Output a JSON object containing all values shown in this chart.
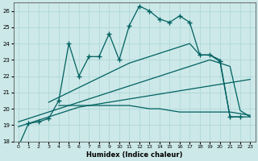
{
  "xlabel": "Humidex (Indice chaleur)",
  "xlim": [
    -0.5,
    23.5
  ],
  "ylim": [
    18,
    26.5
  ],
  "yticks": [
    18,
    19,
    20,
    21,
    22,
    23,
    24,
    25,
    26
  ],
  "xticks": [
    0,
    1,
    2,
    3,
    4,
    5,
    6,
    7,
    8,
    9,
    10,
    11,
    12,
    13,
    14,
    15,
    16,
    17,
    18,
    19,
    20,
    21,
    22,
    23
  ],
  "bg_color": "#cce8e8",
  "line_color": "#006060",
  "grid_color": "#b0d8d8",
  "curve1_x": [
    0,
    1,
    2,
    3,
    4,
    5,
    6,
    7,
    8,
    9,
    10,
    11,
    12,
    13,
    14,
    15,
    16,
    17,
    18,
    19,
    20,
    21,
    22
  ],
  "curve1_y": [
    17.7,
    19.1,
    19.2,
    19.4,
    20.5,
    24.0,
    22.0,
    23.2,
    23.2,
    24.6,
    23.0,
    25.1,
    26.3,
    26.0,
    25.5,
    25.3,
    25.7,
    25.3,
    23.3,
    23.3,
    22.9,
    19.5,
    19.5
  ],
  "curve2_x": [
    0,
    1,
    2,
    3,
    4,
    5,
    6,
    7,
    8,
    9,
    10,
    11,
    12,
    13,
    14,
    15,
    16,
    17,
    18,
    19,
    20,
    21,
    22,
    23
  ],
  "curve2_y": [
    18.9,
    19.1,
    19.3,
    19.5,
    19.7,
    19.9,
    20.1,
    20.2,
    20.3,
    20.4,
    20.5,
    20.6,
    20.7,
    20.8,
    20.9,
    21.0,
    21.1,
    21.2,
    21.3,
    21.4,
    21.5,
    21.6,
    21.7,
    21.8
  ],
  "curve3_x": [
    0,
    1,
    2,
    3,
    4,
    5,
    6,
    7,
    8,
    9,
    10,
    11,
    12,
    13,
    14,
    15,
    16,
    17,
    18,
    19,
    20,
    21,
    22,
    23
  ],
  "curve3_y": [
    19.2,
    19.4,
    19.6,
    19.8,
    20.0,
    20.2,
    20.4,
    20.6,
    20.8,
    21.0,
    21.2,
    21.4,
    21.6,
    21.8,
    22.0,
    22.2,
    22.4,
    22.6,
    22.8,
    23.0,
    22.8,
    22.6,
    19.9,
    19.5
  ],
  "curve4_x": [
    3,
    4,
    5,
    6,
    7,
    8,
    9,
    10,
    11,
    12,
    13,
    14,
    15,
    16,
    17,
    18,
    19,
    20,
    21,
    22,
    23
  ],
  "curve4_y": [
    20.4,
    20.7,
    21.0,
    21.3,
    21.6,
    21.9,
    22.2,
    22.5,
    22.8,
    23.0,
    23.2,
    23.4,
    23.6,
    23.8,
    24.0,
    23.3,
    23.3,
    23.0,
    19.5,
    19.5,
    19.5
  ],
  "flat_x": [
    4,
    5,
    6,
    7,
    8,
    9,
    10,
    11,
    12,
    13,
    14,
    15,
    16,
    17,
    18,
    19,
    20,
    21,
    22,
    23
  ],
  "flat_y": [
    20.2,
    20.2,
    20.2,
    20.2,
    20.2,
    20.2,
    20.2,
    20.2,
    20.1,
    20.0,
    20.0,
    19.9,
    19.8,
    19.8,
    19.8,
    19.8,
    19.8,
    19.8,
    19.7,
    19.6
  ]
}
